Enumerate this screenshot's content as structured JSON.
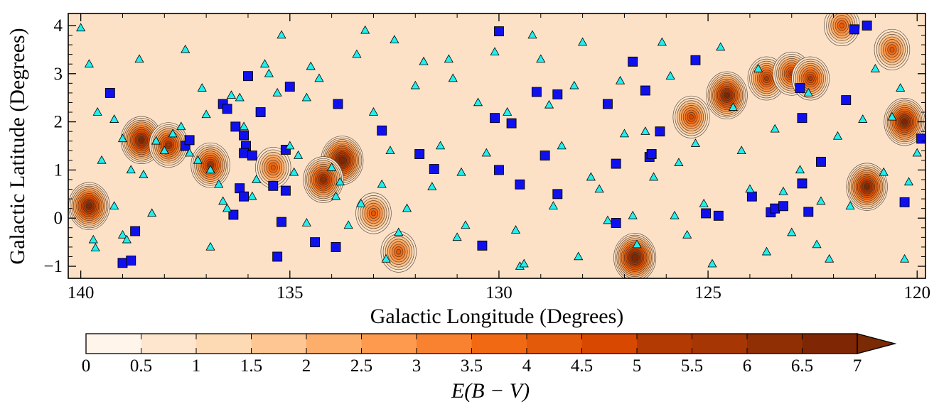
{
  "chart_data": {
    "type": "scatter",
    "xlabel": "Galactic Longitude (Degrees)",
    "ylabel": "Galactic Latitude (Degrees)",
    "xlim": [
      140.3,
      119.8
    ],
    "ylim": [
      -1.25,
      4.25
    ],
    "x_inverted": true,
    "xticks": [
      140,
      135,
      130,
      125,
      120
    ],
    "xtick_labels": [
      "140",
      "135",
      "130",
      "125",
      "120"
    ],
    "yticks": [
      -1,
      0,
      1,
      2,
      3,
      4
    ],
    "ytick_labels": [
      "−1",
      "0",
      "1",
      "2",
      "3",
      "4"
    ],
    "background_map": {
      "type": "filled contour map of reddening",
      "colormap": "Oranges",
      "levels": [
        0,
        0.5,
        1,
        1.5,
        2,
        2.5,
        3,
        3.5,
        4,
        4.5,
        5,
        5.5,
        6,
        6.5,
        7
      ],
      "level_labels": [
        "0",
        "0.5",
        "1",
        "1.5",
        "2",
        "2.5",
        "3",
        "3.5",
        "4",
        "4.5",
        "5",
        "5.5",
        "6",
        "6.5",
        "7"
      ],
      "colors": [
        "#fff5eb",
        "#fee6ce",
        "#fdd9b4",
        "#fdc692",
        "#fdae6b",
        "#fd9a4e",
        "#f98230",
        "#f16913",
        "#e25a0a",
        "#d94801",
        "#b33a02",
        "#a63603",
        "#8f2f03",
        "#7f2704"
      ],
      "extend": "max",
      "colorbar_label": "E(B − V)",
      "clouds": [
        {
          "l": 138.55,
          "b": 1.62,
          "peak": 6.5
        },
        {
          "l": 137.9,
          "b": 1.52,
          "peak": 5.5
        },
        {
          "l": 136.9,
          "b": 1.1,
          "peak": 5.5
        },
        {
          "l": 139.8,
          "b": 0.25,
          "peak": 6.5
        },
        {
          "l": 135.4,
          "b": 1.05,
          "peak": 4.0
        },
        {
          "l": 133.75,
          "b": 1.2,
          "peak": 7.0
        },
        {
          "l": 134.2,
          "b": 0.8,
          "peak": 6.0
        },
        {
          "l": 133.0,
          "b": 0.1,
          "peak": 4.0
        },
        {
          "l": 126.75,
          "b": -0.82,
          "peak": 7.0
        },
        {
          "l": 125.4,
          "b": 2.1,
          "peak": 4.5
        },
        {
          "l": 124.55,
          "b": 2.55,
          "peak": 6.5
        },
        {
          "l": 123.6,
          "b": 2.9,
          "peak": 5.0
        },
        {
          "l": 123.0,
          "b": 3.0,
          "peak": 5.0
        },
        {
          "l": 122.55,
          "b": 2.9,
          "peak": 5.0
        },
        {
          "l": 120.3,
          "b": 2.0,
          "peak": 6.5
        },
        {
          "l": 121.2,
          "b": 0.65,
          "peak": 6.5
        },
        {
          "l": 120.6,
          "b": 3.5,
          "peak": 4.0
        },
        {
          "l": 121.8,
          "b": 4.0,
          "peak": 4.0
        },
        {
          "l": 132.4,
          "b": -0.7,
          "peak": 4.0
        }
      ]
    },
    "series": [
      {
        "marker": "square",
        "color": "#1010ee",
        "points": [
          [
            139.3,
            2.6
          ],
          [
            138.7,
            -0.27
          ],
          [
            139.0,
            -0.93
          ],
          [
            138.8,
            -0.88
          ],
          [
            137.5,
            1.5
          ],
          [
            137.4,
            1.62
          ],
          [
            136.6,
            2.37
          ],
          [
            136.5,
            2.27
          ],
          [
            136.3,
            1.9
          ],
          [
            136.1,
            1.72
          ],
          [
            136.05,
            1.5
          ],
          [
            136.1,
            1.35
          ],
          [
            135.9,
            1.3
          ],
          [
            136.2,
            0.62
          ],
          [
            136.1,
            0.45
          ],
          [
            136.35,
            0.07
          ],
          [
            135.7,
            2.2
          ],
          [
            136.0,
            2.95
          ],
          [
            135.0,
            2.73
          ],
          [
            135.1,
            1.42
          ],
          [
            135.4,
            0.67
          ],
          [
            135.1,
            0.57
          ],
          [
            135.2,
            -0.08
          ],
          [
            135.3,
            -0.8
          ],
          [
            134.4,
            -0.5
          ],
          [
            133.9,
            -0.6
          ],
          [
            133.85,
            2.37
          ],
          [
            132.8,
            1.82
          ],
          [
            131.9,
            1.33
          ],
          [
            131.55,
            1.02
          ],
          [
            130.0,
            3.88
          ],
          [
            129.7,
            1.97
          ],
          [
            130.1,
            2.08
          ],
          [
            130.0,
            1.0
          ],
          [
            129.5,
            0.7
          ],
          [
            130.4,
            -0.57
          ],
          [
            129.1,
            2.62
          ],
          [
            128.6,
            2.57
          ],
          [
            128.9,
            1.3
          ],
          [
            128.6,
            0.5
          ],
          [
            127.4,
            2.37
          ],
          [
            127.2,
            1.13
          ],
          [
            127.2,
            -0.1
          ],
          [
            126.8,
            3.25
          ],
          [
            126.5,
            2.65
          ],
          [
            126.4,
            1.27
          ],
          [
            126.35,
            1.33
          ],
          [
            126.15,
            1.8
          ],
          [
            125.3,
            3.28
          ],
          [
            125.05,
            0.1
          ],
          [
            124.75,
            0.05
          ],
          [
            123.95,
            0.45
          ],
          [
            123.5,
            0.12
          ],
          [
            123.4,
            0.2
          ],
          [
            123.2,
            0.25
          ],
          [
            122.8,
            2.7
          ],
          [
            122.75,
            2.08
          ],
          [
            122.75,
            0.72
          ],
          [
            122.3,
            1.17
          ],
          [
            122.6,
            0.13
          ],
          [
            121.7,
            2.45
          ],
          [
            121.5,
            3.92
          ],
          [
            121.2,
            4.0
          ],
          [
            120.3,
            0.33
          ],
          [
            119.9,
            1.65
          ]
        ]
      },
      {
        "marker": "triangle",
        "color": "#22eeee",
        "points": [
          [
            140.0,
            3.95
          ],
          [
            139.8,
            3.2
          ],
          [
            139.5,
            1.2
          ],
          [
            139.7,
            -0.45
          ],
          [
            139.65,
            -0.62
          ],
          [
            139.6,
            2.2
          ],
          [
            139.2,
            2.05
          ],
          [
            139.0,
            1.65
          ],
          [
            139.2,
            0.25
          ],
          [
            139.0,
            -0.35
          ],
          [
            138.9,
            -0.45
          ],
          [
            138.6,
            3.3
          ],
          [
            138.8,
            1.0
          ],
          [
            138.5,
            0.9
          ],
          [
            138.3,
            0.1
          ],
          [
            138.2,
            1.6
          ],
          [
            138.0,
            1.4
          ],
          [
            137.8,
            1.75
          ],
          [
            137.6,
            1.9
          ],
          [
            137.5,
            3.5
          ],
          [
            137.4,
            1.35
          ],
          [
            137.2,
            1.2
          ],
          [
            137.1,
            2.7
          ],
          [
            137.0,
            2.15
          ],
          [
            136.9,
            1.0
          ],
          [
            136.7,
            0.7
          ],
          [
            136.6,
            0.35
          ],
          [
            136.5,
            0.2
          ],
          [
            136.4,
            2.55
          ],
          [
            136.2,
            2.5
          ],
          [
            136.1,
            1.9
          ],
          [
            135.9,
            0.45
          ],
          [
            135.8,
            0.8
          ],
          [
            135.6,
            3.2
          ],
          [
            135.5,
            3.0
          ],
          [
            135.3,
            2.6
          ],
          [
            135.2,
            3.8
          ],
          [
            135.0,
            1.5
          ],
          [
            134.9,
            0.95
          ],
          [
            134.8,
            1.3
          ],
          [
            134.6,
            2.5
          ],
          [
            134.5,
            3.15
          ],
          [
            134.3,
            2.9
          ],
          [
            134.0,
            1.05
          ],
          [
            133.9,
            0.45
          ],
          [
            133.8,
            0.75
          ],
          [
            133.6,
            -0.15
          ],
          [
            133.4,
            3.4
          ],
          [
            133.2,
            3.9
          ],
          [
            133.0,
            2.2
          ],
          [
            132.8,
            0.7
          ],
          [
            132.6,
            1.4
          ],
          [
            132.5,
            3.7
          ],
          [
            132.4,
            -0.3
          ],
          [
            132.2,
            0.2
          ],
          [
            132.0,
            2.75
          ],
          [
            131.8,
            3.25
          ],
          [
            131.6,
            0.65
          ],
          [
            131.4,
            1.5
          ],
          [
            131.2,
            3.3
          ],
          [
            131.1,
            2.9
          ],
          [
            130.9,
            0.95
          ],
          [
            130.8,
            -0.15
          ],
          [
            130.5,
            2.4
          ],
          [
            130.3,
            1.35
          ],
          [
            130.1,
            3.45
          ],
          [
            129.8,
            2.2
          ],
          [
            129.6,
            -0.25
          ],
          [
            129.5,
            -1.0
          ],
          [
            129.4,
            -0.95
          ],
          [
            129.2,
            3.8
          ],
          [
            129.0,
            3.3
          ],
          [
            128.8,
            2.35
          ],
          [
            128.7,
            0.25
          ],
          [
            128.5,
            1.5
          ],
          [
            128.2,
            2.75
          ],
          [
            128.0,
            3.65
          ],
          [
            127.8,
            0.85
          ],
          [
            127.6,
            0.6
          ],
          [
            127.4,
            -0.05
          ],
          [
            127.1,
            2.85
          ],
          [
            127.0,
            1.75
          ],
          [
            126.8,
            0.05
          ],
          [
            126.7,
            -0.55
          ],
          [
            126.5,
            1.8
          ],
          [
            126.3,
            0.85
          ],
          [
            126.1,
            3.65
          ],
          [
            125.9,
            2.95
          ],
          [
            125.7,
            1.15
          ],
          [
            125.5,
            -0.35
          ],
          [
            125.3,
            1.55
          ],
          [
            125.1,
            0.3
          ],
          [
            124.9,
            -0.95
          ],
          [
            124.7,
            3.55
          ],
          [
            124.4,
            2.3
          ],
          [
            124.2,
            1.4
          ],
          [
            124.0,
            0.6
          ],
          [
            123.8,
            3.1
          ],
          [
            123.6,
            -0.7
          ],
          [
            123.4,
            1.85
          ],
          [
            123.2,
            0.55
          ],
          [
            123.0,
            -0.3
          ],
          [
            122.8,
            1.0
          ],
          [
            122.6,
            2.6
          ],
          [
            122.3,
            0.35
          ],
          [
            122.1,
            -0.85
          ],
          [
            121.9,
            1.7
          ],
          [
            121.6,
            0.25
          ],
          [
            121.3,
            2.05
          ],
          [
            121.0,
            3.1
          ],
          [
            120.8,
            0.95
          ],
          [
            120.6,
            2.1
          ],
          [
            120.4,
            2.7
          ],
          [
            120.3,
            -0.85
          ],
          [
            120.2,
            0.75
          ],
          [
            120.0,
            1.35
          ],
          [
            133.3,
            0.3
          ],
          [
            134.6,
            -0.1
          ],
          [
            136.9,
            -0.6
          ],
          [
            132.7,
            -0.85
          ],
          [
            131.0,
            -0.4
          ],
          [
            128.1,
            -0.8
          ],
          [
            125.8,
            0.05
          ],
          [
            122.4,
            -0.55
          ]
        ]
      }
    ]
  }
}
